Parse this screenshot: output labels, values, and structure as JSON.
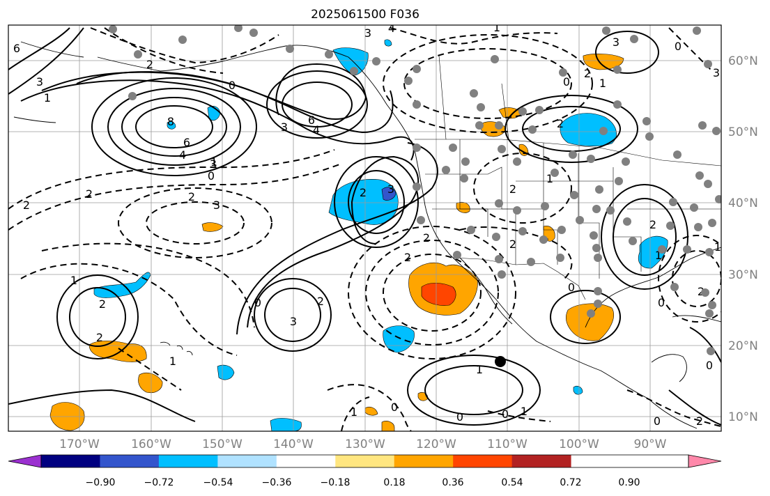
{
  "title": "2025061500 F036",
  "lat_labels": [
    "60°N",
    "50°N",
    "40°N",
    "30°N",
    "20°N",
    "10°N"
  ],
  "lon_labels": [
    "170°W",
    "160°W",
    "150°W",
    "140°W",
    "130°W",
    "120°W",
    "110°W",
    "100°W",
    "90°W"
  ],
  "colorbar": {
    "tick_labels": [
      "−0.90",
      "−0.72",
      "−0.54",
      "−0.36",
      "−0.18",
      "0.18",
      "0.36",
      "0.54",
      "0.72",
      "0.90"
    ],
    "colors": [
      "#9b30d0",
      "#000080",
      "#3355cc",
      "#00bfff",
      "#b0e2ff",
      "#ffffff",
      "#ffe680",
      "#ffa500",
      "#ff4500",
      "#b22222",
      "#ff88aa"
    ]
  },
  "contour_labels": [
    "6",
    "3",
    "1",
    "8",
    "6",
    "4",
    "3",
    "6",
    "4",
    "3",
    "4",
    "2",
    "0",
    "2",
    "2",
    "3",
    "2",
    "3",
    "2",
    "1",
    "2",
    "2",
    "3",
    "2",
    "0",
    "0",
    "1",
    "2",
    "2",
    "0",
    "0",
    "0",
    "1",
    "2",
    "1",
    "2",
    "3",
    "3",
    "2",
    "1",
    "2",
    "0",
    "1",
    "2",
    "1",
    "2",
    "0",
    "0",
    "0",
    "0",
    "2",
    "3",
    "1",
    "0",
    "1",
    "1",
    "1"
  ],
  "colors": {
    "station_dot": "#808080",
    "frame": "#000000",
    "grid": "#9a9a9a",
    "blue_fill": "#00bfff",
    "dark_blue_fill": "#3355cc",
    "orange_fill": "#ffa500",
    "red_fill": "#ff4500"
  }
}
